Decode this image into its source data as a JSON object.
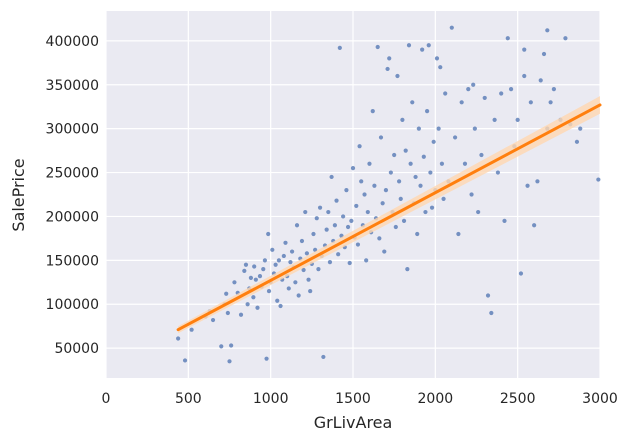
{
  "chart_data": {
    "type": "scatter",
    "title": "",
    "xlabel": "GrLivArea",
    "ylabel": "SalePrice",
    "xlim": [
      0,
      3000
    ],
    "ylim": [
      16000,
      434000
    ],
    "x_ticks": [
      0,
      500,
      1000,
      1500,
      2000,
      2500,
      3000
    ],
    "x_tick_labels": [
      "0",
      "500",
      "1000",
      "1500",
      "2000",
      "2500",
      "3000"
    ],
    "y_ticks": [
      50000,
      100000,
      150000,
      200000,
      250000,
      300000,
      350000,
      400000
    ],
    "y_tick_labels": [
      "50000",
      "100000",
      "150000",
      "200000",
      "250000",
      "300000",
      "350000",
      "400000"
    ],
    "grid": true,
    "background": "#eaeaf2",
    "grid_color": "#ffffff",
    "point_color": "#4c72b0",
    "regression_color": "#ff7f0e",
    "regression_ci_color": "#ffd7b0",
    "regression": {
      "x_start": 438,
      "y_start": 71000,
      "x_end": 3000,
      "y_end": 327000,
      "ci_halfwidth_start": 4000,
      "ci_halfwidth_end": 10000
    },
    "series": [
      {
        "points": [
          [
            438,
            61000
          ],
          [
            480,
            36000
          ],
          [
            520,
            71000
          ],
          [
            605,
            86000
          ],
          [
            630,
            92000
          ],
          [
            650,
            82000
          ],
          [
            700,
            52000
          ],
          [
            720,
            100000
          ],
          [
            730,
            112000
          ],
          [
            740,
            90000
          ],
          [
            750,
            35000
          ],
          [
            760,
            53000
          ],
          [
            780,
            125000
          ],
          [
            800,
            113000
          ],
          [
            820,
            88000
          ],
          [
            840,
            138000
          ],
          [
            850,
            145000
          ],
          [
            860,
            100000
          ],
          [
            870,
            118000
          ],
          [
            880,
            130000
          ],
          [
            895,
            108000
          ],
          [
            900,
            143000
          ],
          [
            910,
            128000
          ],
          [
            920,
            96000
          ],
          [
            935,
            132000
          ],
          [
            945,
            120000
          ],
          [
            955,
            140000
          ],
          [
            965,
            150000
          ],
          [
            975,
            38000
          ],
          [
            985,
            180000
          ],
          [
            990,
            115000
          ],
          [
            1000,
            125000
          ],
          [
            1010,
            162000
          ],
          [
            1020,
            135000
          ],
          [
            1030,
            145000
          ],
          [
            1040,
            104000
          ],
          [
            1050,
            150000
          ],
          [
            1060,
            98000
          ],
          [
            1070,
            128000
          ],
          [
            1080,
            155000
          ],
          [
            1090,
            170000
          ],
          [
            1100,
            132000
          ],
          [
            1110,
            118000
          ],
          [
            1120,
            148000
          ],
          [
            1130,
            160000
          ],
          [
            1140,
            142000
          ],
          [
            1150,
            125000
          ],
          [
            1160,
            190000
          ],
          [
            1170,
            110000
          ],
          [
            1180,
            152000
          ],
          [
            1190,
            172000
          ],
          [
            1200,
            139000
          ],
          [
            1210,
            205000
          ],
          [
            1220,
            158000
          ],
          [
            1230,
            128000
          ],
          [
            1240,
            115000
          ],
          [
            1250,
            146000
          ],
          [
            1260,
            180000
          ],
          [
            1270,
            162000
          ],
          [
            1280,
            198000
          ],
          [
            1290,
            140000
          ],
          [
            1300,
            210000
          ],
          [
            1310,
            155000
          ],
          [
            1320,
            40000
          ],
          [
            1330,
            167000
          ],
          [
            1340,
            185000
          ],
          [
            1350,
            205000
          ],
          [
            1360,
            148000
          ],
          [
            1370,
            245000
          ],
          [
            1380,
            172000
          ],
          [
            1390,
            190000
          ],
          [
            1400,
            218000
          ],
          [
            1410,
            157000
          ],
          [
            1420,
            392000
          ],
          [
            1430,
            178000
          ],
          [
            1440,
            200000
          ],
          [
            1450,
            165000
          ],
          [
            1460,
            230000
          ],
          [
            1470,
            188000
          ],
          [
            1480,
            147000
          ],
          [
            1490,
            195000
          ],
          [
            1500,
            255000
          ],
          [
            1510,
            176000
          ],
          [
            1520,
            212000
          ],
          [
            1530,
            168000
          ],
          [
            1540,
            280000
          ],
          [
            1550,
            240000
          ],
          [
            1560,
            190000
          ],
          [
            1570,
            225000
          ],
          [
            1580,
            150000
          ],
          [
            1590,
            205000
          ],
          [
            1600,
            260000
          ],
          [
            1610,
            182000
          ],
          [
            1620,
            320000
          ],
          [
            1630,
            235000
          ],
          [
            1640,
            198000
          ],
          [
            1650,
            393000
          ],
          [
            1660,
            175000
          ],
          [
            1670,
            290000
          ],
          [
            1680,
            215000
          ],
          [
            1690,
            160000
          ],
          [
            1700,
            230000
          ],
          [
            1710,
            368000
          ],
          [
            1720,
            380000
          ],
          [
            1730,
            250000
          ],
          [
            1740,
            205000
          ],
          [
            1750,
            270000
          ],
          [
            1760,
            188000
          ],
          [
            1770,
            360000
          ],
          [
            1780,
            240000
          ],
          [
            1790,
            220000
          ],
          [
            1800,
            310000
          ],
          [
            1810,
            195000
          ],
          [
            1820,
            275000
          ],
          [
            1830,
            140000
          ],
          [
            1840,
            395000
          ],
          [
            1850,
            260000
          ],
          [
            1860,
            330000
          ],
          [
            1870,
            215000
          ],
          [
            1880,
            245000
          ],
          [
            1890,
            180000
          ],
          [
            1900,
            300000
          ],
          [
            1910,
            235000
          ],
          [
            1920,
            390000
          ],
          [
            1930,
            268000
          ],
          [
            1940,
            205000
          ],
          [
            1950,
            320000
          ],
          [
            1960,
            395000
          ],
          [
            1970,
            250000
          ],
          [
            1980,
            210000
          ],
          [
            1990,
            285000
          ],
          [
            2000,
            230000
          ],
          [
            2010,
            380000
          ],
          [
            2020,
            300000
          ],
          [
            2030,
            370000
          ],
          [
            2040,
            260000
          ],
          [
            2050,
            220000
          ],
          [
            2060,
            340000
          ],
          [
            2080,
            240000
          ],
          [
            2100,
            415000
          ],
          [
            2120,
            290000
          ],
          [
            2140,
            180000
          ],
          [
            2160,
            330000
          ],
          [
            2180,
            260000
          ],
          [
            2200,
            345000
          ],
          [
            2220,
            225000
          ],
          [
            2240,
            300000
          ],
          [
            2260,
            205000
          ],
          [
            2280,
            270000
          ],
          [
            2300,
            335000
          ],
          [
            2320,
            110000
          ],
          [
            2340,
            90000
          ],
          [
            2360,
            310000
          ],
          [
            2380,
            250000
          ],
          [
            2400,
            340000
          ],
          [
            2420,
            195000
          ],
          [
            2440,
            403000
          ],
          [
            2460,
            345000
          ],
          [
            2480,
            280000
          ],
          [
            2500,
            310000
          ],
          [
            2520,
            135000
          ],
          [
            2540,
            360000
          ],
          [
            2560,
            235000
          ],
          [
            2580,
            330000
          ],
          [
            2600,
            190000
          ],
          [
            2620,
            240000
          ],
          [
            2640,
            355000
          ],
          [
            2660,
            385000
          ],
          [
            2680,
            300000
          ],
          [
            2700,
            330000
          ],
          [
            2720,
            345000
          ],
          [
            2760,
            310000
          ],
          [
            2790,
            403000
          ],
          [
            2820,
            305000
          ],
          [
            2860,
            285000
          ],
          [
            2880,
            300000
          ],
          [
            2990,
            242000
          ],
          [
            2680,
            412000
          ],
          [
            2540,
            390000
          ],
          [
            2230,
            350000
          ]
        ]
      }
    ]
  }
}
